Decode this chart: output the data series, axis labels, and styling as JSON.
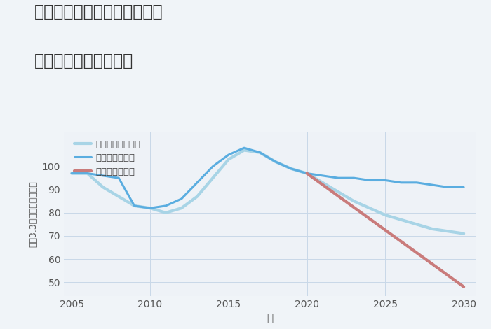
{
  "title_line1": "埼玉県南埼玉郡宮代町国納の",
  "title_line2": "中古戸建ての価格推移",
  "xlabel": "年",
  "ylabel": "平（3.3㎡）単価（万円）",
  "background_color": "#f0f4f8",
  "plot_background": "#eef2f7",
  "good_scenario": {
    "label": "グッドシナリオ",
    "color": "#5aade0",
    "x": [
      2005,
      2006,
      2007,
      2008,
      2009,
      2010,
      2011,
      2012,
      2013,
      2014,
      2015,
      2016,
      2017,
      2018,
      2019,
      2020,
      2021,
      2022,
      2023,
      2024,
      2025,
      2026,
      2027,
      2028,
      2029,
      2030
    ],
    "y": [
      97,
      97,
      96,
      95,
      83,
      82,
      83,
      86,
      93,
      100,
      105,
      108,
      106,
      102,
      99,
      97,
      96,
      95,
      95,
      94,
      94,
      93,
      93,
      92,
      91,
      91
    ]
  },
  "bad_scenario": {
    "label": "バッドシナリオ",
    "color": "#c97b7b",
    "x": [
      2020,
      2030
    ],
    "y": [
      97,
      48
    ]
  },
  "normal_scenario": {
    "label": "ノーマルシナリオ",
    "color": "#a8d4e6",
    "x": [
      2005,
      2006,
      2007,
      2008,
      2009,
      2010,
      2011,
      2012,
      2013,
      2014,
      2015,
      2016,
      2017,
      2018,
      2019,
      2020,
      2021,
      2022,
      2023,
      2024,
      2025,
      2026,
      2027,
      2028,
      2029,
      2030
    ],
    "y": [
      97,
      97,
      91,
      87,
      83,
      82,
      80,
      82,
      87,
      95,
      103,
      107,
      106,
      102,
      99,
      97,
      93,
      89,
      85,
      82,
      79,
      77,
      75,
      73,
      72,
      71
    ]
  },
  "ylim": [
    44,
    115
  ],
  "yticks": [
    50,
    60,
    70,
    80,
    90,
    100
  ],
  "xlim": [
    2004.5,
    2030.8
  ],
  "xticks": [
    2005,
    2010,
    2015,
    2020,
    2025,
    2030
  ],
  "linewidth": 2.2
}
